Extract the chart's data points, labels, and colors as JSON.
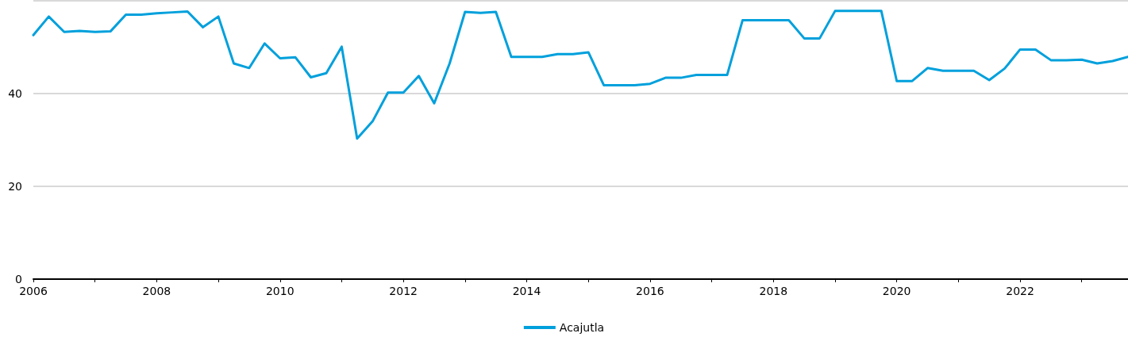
{
  "chart_data": {
    "type": "line",
    "x": [
      2006,
      2006.25,
      2006.5,
      2006.75,
      2007,
      2007.25,
      2007.5,
      2007.75,
      2008,
      2008.25,
      2008.5,
      2008.75,
      2009,
      2009.25,
      2009.5,
      2009.75,
      2010,
      2010.25,
      2010.5,
      2010.75,
      2011,
      2011.25,
      2011.5,
      2011.75,
      2012,
      2012.25,
      2012.5,
      2012.75,
      2013,
      2013.25,
      2013.5,
      2013.75,
      2014,
      2014.25,
      2014.5,
      2014.75,
      2015,
      2015.25,
      2015.5,
      2015.75,
      2016,
      2016.25,
      2016.5,
      2016.75,
      2017,
      2017.25,
      2017.5,
      2017.75,
      2018,
      2018.25,
      2018.5,
      2018.75,
      2019,
      2019.25,
      2019.5,
      2019.75,
      2020,
      2020.25,
      2020.5,
      2020.75,
      2021,
      2021.25,
      2021.5,
      2021.75,
      2022,
      2022.25,
      2022.5,
      2022.75,
      2023,
      2023.25,
      2023.5,
      2023.75
    ],
    "series": [
      {
        "name": "Acajutla",
        "color": "#00a0dc",
        "values": [
          52.6,
          56.6,
          53.3,
          53.5,
          53.3,
          53.4,
          57.0,
          57.0,
          57.3,
          57.5,
          57.7,
          54.3,
          56.6,
          46.5,
          45.5,
          50.8,
          47.6,
          47.8,
          43.5,
          44.4,
          50.1,
          30.3,
          34.0,
          40.2,
          40.2,
          43.8,
          37.9,
          46.5,
          57.6,
          57.4,
          57.6,
          47.9,
          47.9,
          47.9,
          48.5,
          48.5,
          48.9,
          41.8,
          41.8,
          41.8,
          42.1,
          43.4,
          43.4,
          44.0,
          44.0,
          44.0,
          55.8,
          55.8,
          55.8,
          55.8,
          51.9,
          51.9,
          57.8,
          57.8,
          57.8,
          57.8,
          42.7,
          42.7,
          45.5,
          44.9,
          44.9,
          44.9,
          42.9,
          45.4,
          49.5,
          49.5,
          47.2,
          47.2,
          47.3,
          46.5,
          47.0,
          47.9
        ]
      }
    ],
    "xlim": [
      2006,
      2023.75
    ],
    "xticks": [
      2006,
      {
        "value": 2007,
        "label": null
      },
      2008,
      {
        "value": 2009,
        "label": null
      },
      2010,
      {
        "value": 2011,
        "label": null
      },
      2012,
      {
        "value": 2013,
        "label": null
      },
      2014,
      {
        "value": 2015,
        "label": null
      },
      2016,
      {
        "value": 2017,
        "label": null
      },
      2018,
      {
        "value": 2019,
        "label": null
      },
      2020,
      {
        "value": 2021,
        "label": null
      },
      2022,
      {
        "value": 2023,
        "label": null
      }
    ],
    "ylim": [
      0,
      60
    ],
    "yticks": [
      0,
      20,
      40,
      {
        "value": 60,
        "label": null
      }
    ],
    "grid": "y",
    "legend": "bottom",
    "marker": "none",
    "line_style": "solid"
  }
}
